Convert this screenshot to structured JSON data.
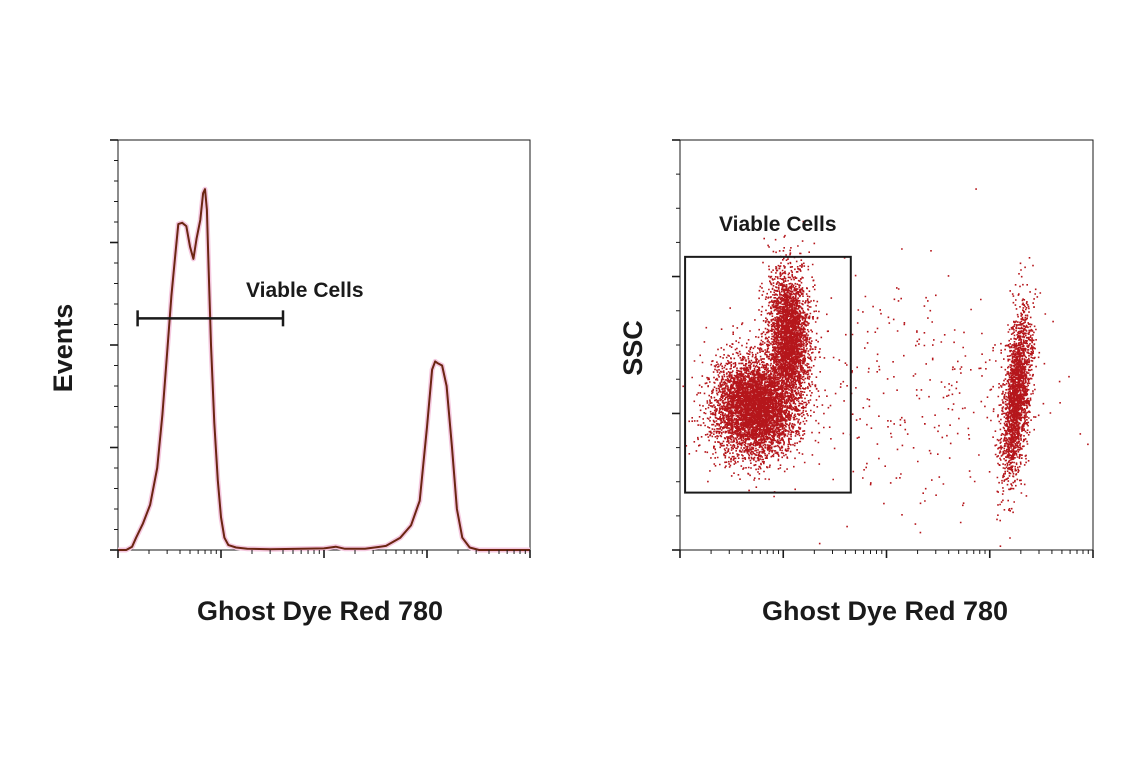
{
  "chart_data": [
    {
      "type": "histogram",
      "xlabel": "Ghost Dye Red 780",
      "ylabel": "Events",
      "x_scale": "log",
      "xlim": [
        10,
        100000
      ],
      "ylim": [
        0,
        100
      ],
      "y_major_ticks": [
        0,
        25,
        50,
        75,
        100
      ],
      "gate": {
        "label": "Viable Cells",
        "type": "range",
        "x_min": 15.5,
        "x_max": 400,
        "y": 56.5
      },
      "colors": {
        "curve": "#6b2512",
        "shade": "#f4c8df"
      },
      "curve": [
        [
          10,
          0
        ],
        [
          12,
          0
        ],
        [
          13.7,
          0.8
        ],
        [
          15,
          3
        ],
        [
          17.5,
          6.5
        ],
        [
          20.5,
          11
        ],
        [
          24,
          20
        ],
        [
          27,
          33
        ],
        [
          30,
          48
        ],
        [
          33,
          62
        ],
        [
          36,
          72
        ],
        [
          38.5,
          79.5
        ],
        [
          42,
          79.8
        ],
        [
          46,
          79
        ],
        [
          50,
          74
        ],
        [
          54,
          71
        ],
        [
          58,
          76
        ],
        [
          63,
          80.5
        ],
        [
          67,
          87
        ],
        [
          70,
          88
        ],
        [
          73,
          83
        ],
        [
          76,
          68
        ],
        [
          80,
          50
        ],
        [
          86,
          31
        ],
        [
          93,
          17
        ],
        [
          100,
          8
        ],
        [
          108,
          3
        ],
        [
          118,
          1.2
        ],
        [
          140,
          0.6
        ],
        [
          180,
          0.3
        ],
        [
          300,
          0.2
        ],
        [
          600,
          0.3
        ],
        [
          1000,
          0.4
        ],
        [
          1300,
          0.8
        ],
        [
          1600,
          0.3
        ],
        [
          2500,
          0.3
        ],
        [
          4000,
          1
        ],
        [
          5500,
          3
        ],
        [
          7000,
          6
        ],
        [
          8500,
          12
        ],
        [
          10000,
          30
        ],
        [
          11200,
          44
        ],
        [
          12000,
          46
        ],
        [
          12800,
          45.5
        ],
        [
          14000,
          45
        ],
        [
          15500,
          40
        ],
        [
          17500,
          25
        ],
        [
          19500,
          10
        ],
        [
          22000,
          3
        ],
        [
          26000,
          0.6
        ],
        [
          32000,
          0
        ],
        [
          100000,
          0
        ]
      ]
    },
    {
      "type": "scatter",
      "xlabel": "Ghost Dye Red 780",
      "ylabel": "SSC",
      "x_scale": "log",
      "xlim": [
        10,
        100000
      ],
      "ylim": [
        0,
        100
      ],
      "y_major_ticks": [
        0,
        33.3,
        66.7,
        100
      ],
      "gate": {
        "label": "Viable Cells",
        "type": "rectangle",
        "x_min": 11.2,
        "x_max": 451,
        "y_min": 14,
        "y_max": 71.5
      },
      "colors": {
        "dots": "#b5161b"
      },
      "populations": [
        {
          "x_center": 52,
          "y_center": 35,
          "x_log_sd": 0.2,
          "y_sd": 6,
          "count": 5000
        },
        {
          "x_center": 112,
          "y_center": 52,
          "x_log_sd": 0.1,
          "y_sd": 8,
          "count": 3000
        },
        {
          "x_center": 18000,
          "y_center": 38,
          "x_log_sd": 0.06,
          "y_sd": 10,
          "count": 2200
        },
        {
          "x_center": 2000,
          "y_center": 40,
          "x_log_sd": 0.7,
          "y_sd": 15,
          "count": 300
        }
      ]
    }
  ]
}
